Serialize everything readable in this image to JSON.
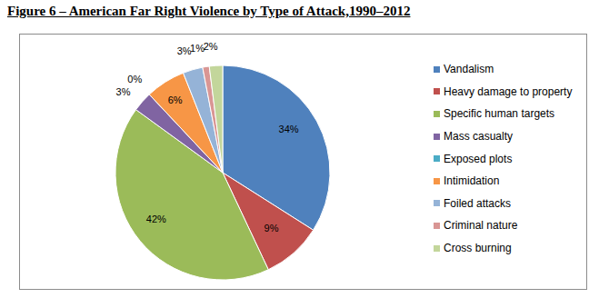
{
  "chart_data": {
    "type": "pie",
    "title": "Figure 6 – American Far Right Violence by Type of Attack,1990–2012",
    "categories": [
      "Vandalism",
      "Heavy damage to property",
      "Specific human targets",
      "Mass casualty",
      "Exposed plots",
      "Intimidation",
      "Foiled attacks",
      "Criminal nature",
      "Cross burning"
    ],
    "values": [
      34,
      9,
      42,
      3,
      0,
      6,
      3,
      1,
      2
    ],
    "value_labels": [
      "34%",
      "9%",
      "42%",
      "3%",
      "0%",
      "6%",
      "3%",
      "1%",
      "2%"
    ],
    "colors": [
      "#4f81bd",
      "#c0504d",
      "#9bbb59",
      "#8064a2",
      "#4bacc6",
      "#f79646",
      "#95b3d7",
      "#d99694",
      "#c3d69b"
    ],
    "legend": "right",
    "data_labels": true
  }
}
